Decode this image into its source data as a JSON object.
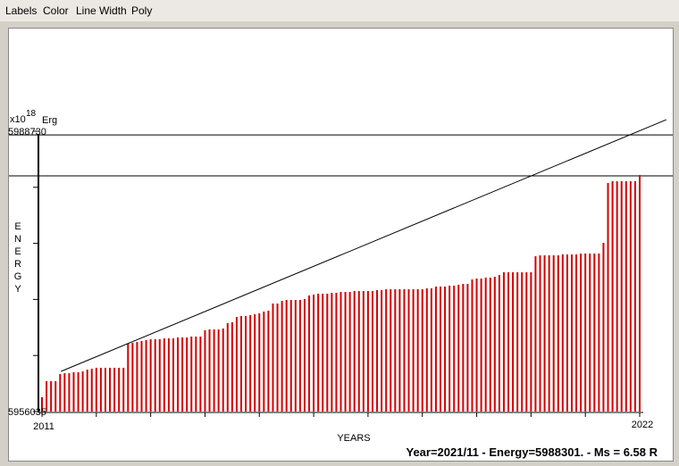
{
  "menu": [
    "Labels",
    "Color",
    "Line Width",
    "Poly"
  ],
  "chart_data": {
    "type": "bar",
    "ylabel": "ENERGY",
    "yunit_prefix": "x10",
    "yunit_exponent": "18",
    "yunit": "Erg",
    "xlabel": "YEARS",
    "color": "#d40000",
    "xlim": [
      2011,
      2022
    ],
    "xticks": [
      2011,
      2012,
      2013,
      2014,
      2015,
      2016,
      2017,
      2018,
      2019,
      2020,
      2021,
      2022
    ],
    "ylim": [
      5956035,
      5988730
    ],
    "yticks": [
      5956035,
      5962574,
      5969113,
      5975652,
      5982191,
      5988730
    ],
    "hlines": [
      5988300,
      5983520
    ],
    "trend_line": {
      "x": [
        2011.35,
        2022.49
      ],
      "values": [
        5960720,
        5990080
      ]
    },
    "values": [
      5957700,
      5959580,
      5959580,
      5959580,
      5960410,
      5960510,
      5960510,
      5960620,
      5960620,
      5960720,
      5960930,
      5961030,
      5961140,
      5961140,
      5961140,
      5961140,
      5961140,
      5961140,
      5961140,
      5963950,
      5964050,
      5964160,
      5964260,
      5964360,
      5964470,
      5964470,
      5964470,
      5964570,
      5964570,
      5964570,
      5964680,
      5964680,
      5964680,
      5964780,
      5964780,
      5964780,
      5965510,
      5965610,
      5965610,
      5965610,
      5965720,
      5966340,
      5966450,
      5967070,
      5967180,
      5967180,
      5967280,
      5967380,
      5967490,
      5967700,
      5967800,
      5968630,
      5968630,
      5968950,
      5969050,
      5969050,
      5969050,
      5969050,
      5969150,
      5969570,
      5969680,
      5969780,
      5969780,
      5969780,
      5969880,
      5969880,
      5969990,
      5969990,
      5969990,
      5970090,
      5970090,
      5970090,
      5970090,
      5970090,
      5970200,
      5970200,
      5970300,
      5970300,
      5970300,
      5970300,
      5970300,
      5970300,
      5970300,
      5970300,
      5970300,
      5970400,
      5970400,
      5970610,
      5970610,
      5970610,
      5970720,
      5970720,
      5970820,
      5970920,
      5970920,
      5971450,
      5971550,
      5971550,
      5971650,
      5971650,
      5971760,
      5971970,
      5972280,
      5972280,
      5972280,
      5972280,
      5972280,
      5972280,
      5972280,
      5974150,
      5974260,
      5974260,
      5974260,
      5974260,
      5974260,
      5974360,
      5974360,
      5974360,
      5974360,
      5974460,
      5974460,
      5974460,
      5974460,
      5974460,
      5975710,
      5982690,
      5982900,
      5982900,
      5982900,
      5982900,
      5982900,
      5982900,
      5983630
    ]
  },
  "status": "Year=2021/11 - Energy=5988301. - Ms = 6.58 R"
}
